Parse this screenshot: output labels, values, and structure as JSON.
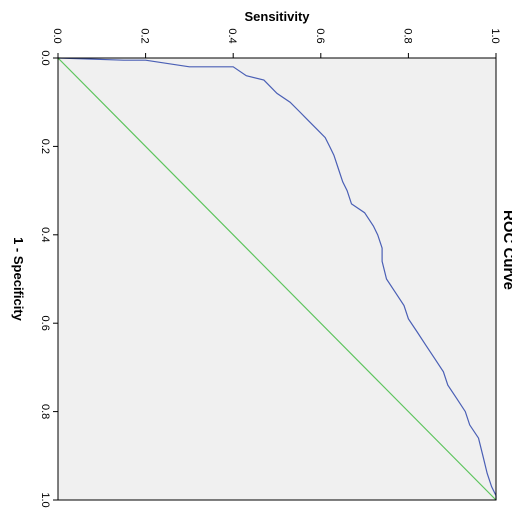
{
  "chart_data": {
    "type": "line",
    "title": "ROC Curve",
    "xlabel": "1 - Specificity",
    "ylabel": "Sensitivity",
    "xlim": [
      0,
      1
    ],
    "ylim": [
      0,
      1
    ],
    "x_ticks": [
      "0.0",
      "0.2",
      "0.4",
      "0.6",
      "0.8",
      "1.0"
    ],
    "y_ticks": [
      "0.0",
      "0.2",
      "0.4",
      "0.6",
      "0.8",
      "1.0"
    ],
    "orientation": "rotated 90 degrees clockwise",
    "grid": false,
    "colors": {
      "plot_background": "#f0f0f0",
      "roc_line": "#4a5fb5",
      "reference_line": "#5cc45c",
      "frame": "#000000"
    },
    "series": [
      {
        "x": [
          0,
          0.005,
          0.005,
          0.02,
          0.02,
          0.04,
          0.05,
          0.08,
          0.1,
          0.12,
          0.14,
          0.16,
          0.18,
          0.2,
          0.22,
          0.25,
          0.28,
          0.3,
          0.33,
          0.35,
          0.38,
          0.4,
          0.43,
          0.46,
          0.5,
          0.53,
          0.56,
          0.59,
          0.62,
          0.65,
          0.68,
          0.71,
          0.74,
          0.77,
          0.8,
          0.83,
          0.86,
          0.9,
          0.94,
          0.97,
          0.99,
          1.0
        ],
        "y": [
          0,
          0.15,
          0.2,
          0.3,
          0.4,
          0.43,
          0.47,
          0.5,
          0.53,
          0.55,
          0.57,
          0.59,
          0.61,
          0.62,
          0.63,
          0.64,
          0.65,
          0.66,
          0.67,
          0.7,
          0.72,
          0.73,
          0.74,
          0.74,
          0.75,
          0.77,
          0.79,
          0.8,
          0.82,
          0.84,
          0.86,
          0.88,
          0.89,
          0.91,
          0.93,
          0.94,
          0.96,
          0.97,
          0.98,
          0.99,
          1.0,
          1.0
        ]
      },
      {
        "x": [
          0,
          1
        ],
        "y": [
          0,
          1
        ]
      }
    ]
  }
}
